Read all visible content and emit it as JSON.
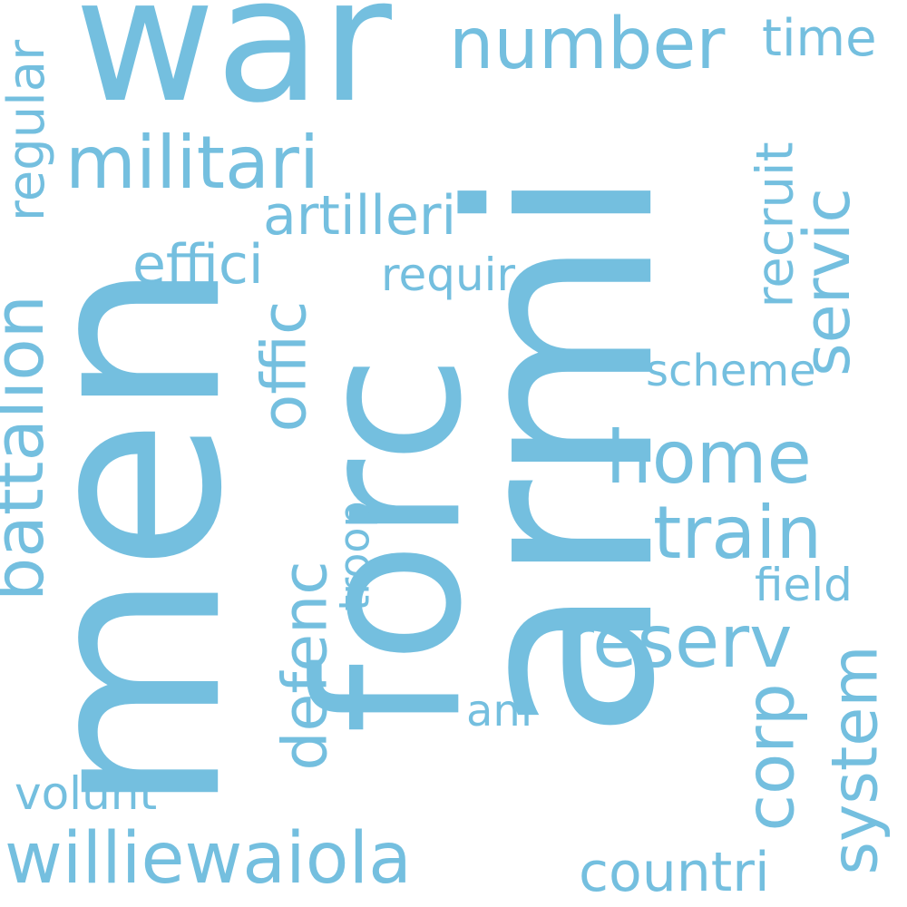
{
  "colors": {
    "word": "#74bfdf",
    "background": "#ffffff"
  },
  "words": {
    "war": "war",
    "men": "men",
    "armi": "armi",
    "forc": "forc",
    "number": "number",
    "time": "time",
    "militari": "militari",
    "regular": "regular",
    "artilleri": "artilleri",
    "effici": "effici",
    "requir": "requir",
    "recruit": "recruit",
    "servic": "servic",
    "battalion": "battalion",
    "offic": "offic",
    "scheme": "scheme",
    "home": "home",
    "train": "train",
    "troop": "troop",
    "defenc": "defenc",
    "field": "field",
    "reserv": "reserv",
    "corp": "corp",
    "system": "system",
    "ani": "ani",
    "volunt": "volunt",
    "williewaiola": "williewaiola",
    "countri": "countri"
  }
}
